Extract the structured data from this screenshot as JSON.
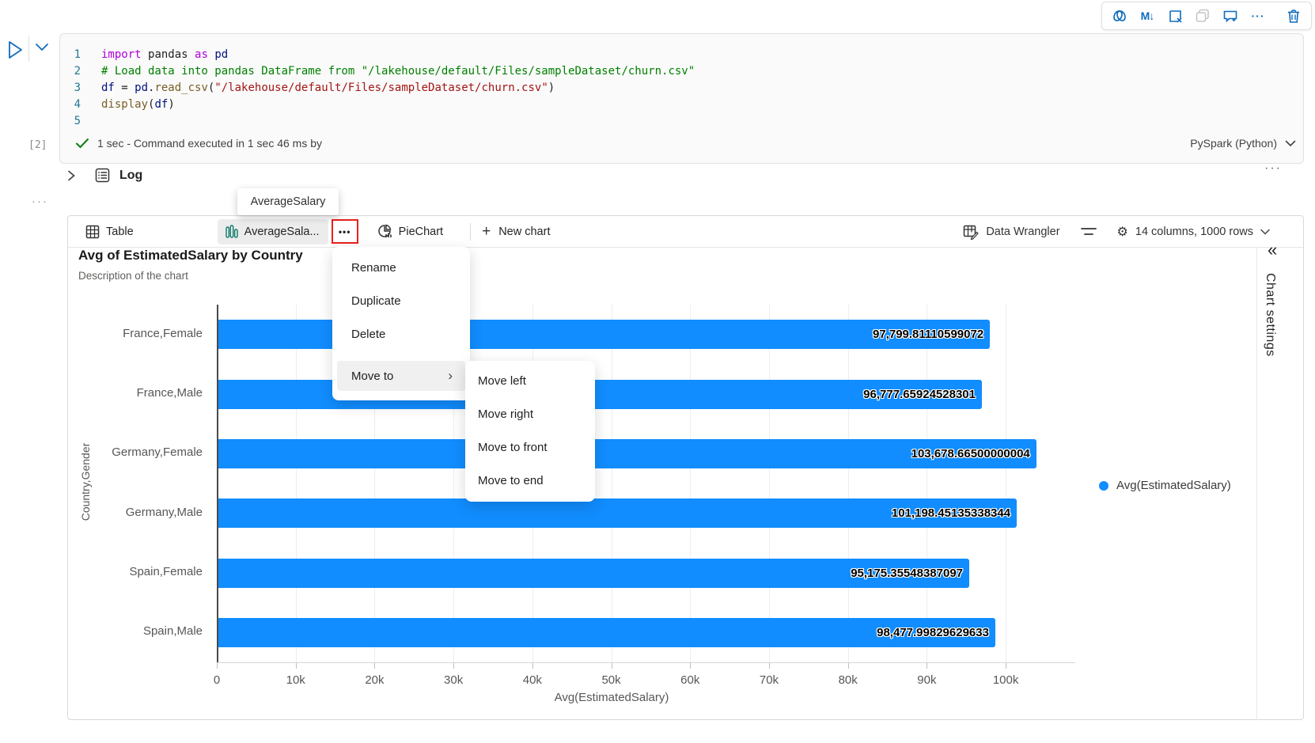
{
  "toolbar": {
    "markdown_label": "M↓",
    "more_label": "···"
  },
  "cell": {
    "execution_count": "[2]",
    "status_text": "1 sec - Command executed in 1 sec 46 ms by",
    "kernel_label": "PySpark (Python)",
    "code_lines": [
      {
        "num": "1",
        "tokens": [
          {
            "t": "import ",
            "c": "kw"
          },
          {
            "t": "pandas ",
            "c": "plain"
          },
          {
            "t": "as ",
            "c": "kw"
          },
          {
            "t": "pd",
            "c": "var"
          }
        ]
      },
      {
        "num": "2",
        "tokens": [
          {
            "t": "# Load data into pandas DataFrame from \"/lakehouse/default/Files/sampleDataset/churn.csv\"",
            "c": "comment"
          }
        ]
      },
      {
        "num": "3",
        "tokens": [
          {
            "t": "df ",
            "c": "var"
          },
          {
            "t": "= ",
            "c": "plain"
          },
          {
            "t": "pd",
            "c": "var"
          },
          {
            "t": ".",
            "c": "plain"
          },
          {
            "t": "read_csv",
            "c": "fn"
          },
          {
            "t": "(",
            "c": "plain"
          },
          {
            "t": "\"/lakehouse/default/Files/sampleDataset/churn.csv\"",
            "c": "str"
          },
          {
            "t": ")",
            "c": "plain"
          }
        ]
      },
      {
        "num": "4",
        "tokens": [
          {
            "t": "display",
            "c": "fn"
          },
          {
            "t": "(",
            "c": "plain"
          },
          {
            "t": "df",
            "c": "var"
          },
          {
            "t": ")",
            "c": "plain"
          }
        ]
      },
      {
        "num": "5",
        "tokens": []
      }
    ]
  },
  "log": {
    "label": "Log",
    "more": "···",
    "margin_dots": "···"
  },
  "tooltip": {
    "text": "AverageSalary"
  },
  "tab_bar": {
    "table_tab": "Table",
    "selected_tab": "AverageSala...",
    "more_button": "•••",
    "pie_tab": "PieChart",
    "new_chart": "New chart",
    "plus": "+",
    "data_wrangler": "Data Wrangler",
    "gear": "⚙",
    "columns_info": "14 columns, 1000 rows"
  },
  "context_menu": {
    "items": [
      "Rename",
      "Duplicate",
      "Delete"
    ],
    "move_to": "Move to",
    "chevron": "›"
  },
  "submenu": {
    "items": [
      "Move left",
      "Move right",
      "Move to front",
      "Move to end"
    ]
  },
  "chart_settings_panel": {
    "collapse_glyph": "«",
    "title": "Chart settings"
  },
  "chart_data": {
    "type": "bar",
    "orientation": "horizontal",
    "title": "Avg of EstimatedSalary by Country",
    "subtitle": "Description of the chart",
    "categories": [
      "France,Female",
      "France,Male",
      "Germany,Female",
      "Germany,Male",
      "Spain,Female",
      "Spain,Male"
    ],
    "values": [
      97799.81110599072,
      96777.65924528301,
      103678.66500000004,
      101198.45135338344,
      95175.35548387097,
      98477.99829629633
    ],
    "value_labels": [
      "97,799.81110599072",
      "96,777.65924528301",
      "103,678.66500000004",
      "101,198.45135338344",
      "95,175.35548387097",
      "98,477.99829629633"
    ],
    "xlabel": "Avg(EstimatedSalary)",
    "ylabel": "Country,Gender",
    "xticks": [
      "0",
      "10k",
      "20k",
      "30k",
      "40k",
      "50k",
      "60k",
      "70k",
      "80k",
      "90k",
      "100k"
    ],
    "xtick_values": [
      0,
      10000,
      20000,
      30000,
      40000,
      50000,
      60000,
      70000,
      80000,
      90000,
      100000
    ],
    "xlim": [
      0,
      104000
    ],
    "legend": [
      "Avg(EstimatedSalary)"
    ],
    "legend_position": "right",
    "bar_color": "#118DFF",
    "grid": true
  }
}
